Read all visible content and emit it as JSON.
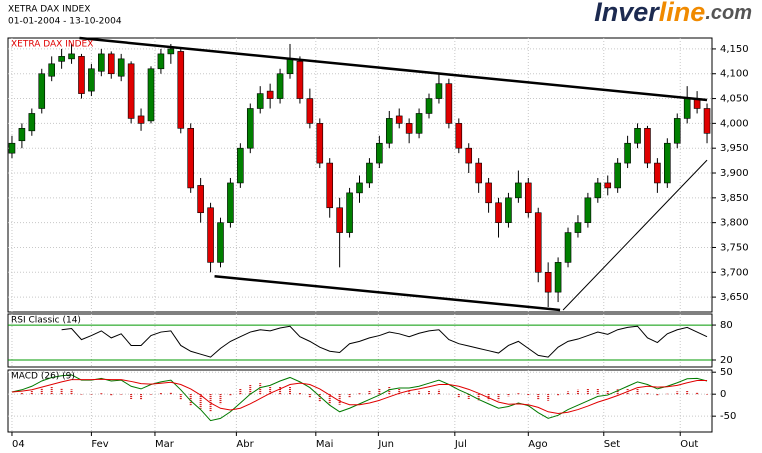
{
  "header": {
    "title": "XETRA DAX INDEX",
    "dates": "01-01-2004 - 13-10-2004",
    "logo": [
      "Inver",
      "line",
      ".com"
    ]
  },
  "chart_data": [
    {
      "type": "candlestick",
      "title": "XETRA DAX INDEX",
      "up_color": "#008000",
      "down_color": "#e00000",
      "grid": true,
      "grid_color": "#c8c8c8",
      "xlim": [
        -0.4,
        70.5
      ],
      "ylim": [
        3620,
        4172
      ],
      "yticks": [
        {
          "value": 3650,
          "label": "3,650"
        },
        {
          "value": 3700,
          "label": "3,700"
        },
        {
          "value": 3750,
          "label": "3,750"
        },
        {
          "value": 3800,
          "label": "3,800"
        },
        {
          "value": 3850,
          "label": "3,850"
        },
        {
          "value": 3900,
          "label": "3,900"
        },
        {
          "value": 3950,
          "label": "3,950"
        },
        {
          "value": 4000,
          "label": "4,000"
        },
        {
          "value": 4050,
          "label": "4,050"
        },
        {
          "value": 4100,
          "label": "4,100"
        },
        {
          "value": 4150,
          "label": "4,150"
        }
      ],
      "open": [
        3940,
        3965,
        3985,
        4030,
        4095,
        4125,
        4130,
        4135,
        4065,
        4105,
        4140,
        4095,
        4120,
        4015,
        4005,
        4110,
        4140,
        4145,
        3990,
        3875,
        3830,
        3720,
        3800,
        3880,
        3950,
        4030,
        4065,
        4050,
        4100,
        4125,
        4050,
        4000,
        3920,
        3830,
        3780,
        3860,
        3880,
        3920,
        3960,
        4015,
        4000,
        3980,
        4020,
        4050,
        4080,
        4000,
        3950,
        3920,
        3880,
        3840,
        3800,
        3850,
        3880,
        3820,
        3700,
        3660,
        3720,
        3780,
        3800,
        3850,
        3880,
        3870,
        3920,
        3960,
        3990,
        3920,
        3880,
        3960,
        4010,
        4050,
        4030
      ],
      "high": [
        3975,
        4000,
        4030,
        4110,
        4135,
        4150,
        4160,
        4140,
        4120,
        4150,
        4145,
        4140,
        4125,
        4030,
        4115,
        4150,
        4160,
        4150,
        4000,
        3890,
        3840,
        3810,
        3890,
        3960,
        4040,
        4075,
        4080,
        4110,
        4160,
        4135,
        4070,
        4010,
        3930,
        3850,
        3870,
        3895,
        3930,
        3975,
        4025,
        4030,
        4010,
        4030,
        4060,
        4100,
        4090,
        4010,
        3960,
        3930,
        3890,
        3850,
        3860,
        3905,
        3890,
        3830,
        3720,
        3730,
        3790,
        3815,
        3860,
        3890,
        3895,
        3930,
        3975,
        4000,
        3995,
        3930,
        3970,
        4020,
        4075,
        4065,
        4040
      ],
      "low": [
        3930,
        3950,
        3975,
        4020,
        4085,
        4110,
        4120,
        4050,
        4055,
        4095,
        4090,
        4085,
        4000,
        3985,
        4000,
        4100,
        4120,
        3980,
        3860,
        3800,
        3700,
        3710,
        3790,
        3870,
        3940,
        4020,
        4030,
        4040,
        4090,
        4040,
        3990,
        3910,
        3810,
        3710,
        3770,
        3840,
        3870,
        3910,
        3950,
        3990,
        3960,
        3970,
        4010,
        4040,
        3990,
        3940,
        3900,
        3860,
        3820,
        3770,
        3790,
        3840,
        3810,
        3680,
        3630,
        3640,
        3710,
        3770,
        3790,
        3840,
        3855,
        3860,
        3910,
        3950,
        3910,
        3860,
        3870,
        3950,
        4000,
        4020,
        3960
      ],
      "close": [
        3960,
        3990,
        4020,
        4100,
        4120,
        4135,
        4140,
        4060,
        4110,
        4140,
        4100,
        4130,
        4010,
        4000,
        4110,
        4140,
        4150,
        3990,
        3870,
        3820,
        3720,
        3800,
        3880,
        3950,
        4030,
        4060,
        4050,
        4100,
        4130,
        4050,
        4000,
        3920,
        3830,
        3780,
        3860,
        3880,
        3920,
        3960,
        4010,
        4000,
        3980,
        4020,
        4050,
        4080,
        4000,
        3950,
        3920,
        3880,
        3840,
        3800,
        3850,
        3880,
        3820,
        3700,
        3660,
        3720,
        3780,
        3800,
        3850,
        3880,
        3870,
        3920,
        3960,
        3990,
        3920,
        3880,
        3960,
        4010,
        4050,
        4030,
        3980
      ],
      "trendlines": [
        {
          "x": [
            6.8,
            70
          ],
          "y": [
            4172,
            4047
          ]
        },
        {
          "x": [
            20.4,
            55.2
          ],
          "y": [
            3692,
            3624
          ]
        },
        {
          "x": [
            55.5,
            70
          ],
          "y": [
            3624,
            3926
          ]
        }
      ]
    },
    {
      "type": "line",
      "title": "RSI Classic (14)",
      "ylim": [
        8,
        99
      ],
      "yticks": [
        20,
        80
      ],
      "grid": true,
      "grid_color": "#009900",
      "series": [
        {
          "color": "#000000",
          "values": [
            null,
            null,
            null,
            null,
            null,
            72,
            74,
            55,
            62,
            70,
            58,
            65,
            45,
            45,
            62,
            68,
            70,
            45,
            35,
            30,
            25,
            40,
            52,
            60,
            68,
            72,
            70,
            75,
            78,
            60,
            52,
            42,
            35,
            33,
            48,
            52,
            58,
            62,
            68,
            65,
            60,
            66,
            70,
            72,
            55,
            48,
            44,
            40,
            36,
            32,
            45,
            52,
            40,
            28,
            25,
            42,
            52,
            56,
            62,
            68,
            64,
            72,
            76,
            78,
            58,
            50,
            65,
            72,
            76,
            68,
            60
          ]
        }
      ]
    },
    {
      "type": "macd",
      "title": "MACD (26) (9)",
      "ylim": [
        -86,
        55
      ],
      "yticks": [
        -50,
        0,
        50
      ],
      "grid": true,
      "grid_color": "#c8c8c8",
      "histogram": {
        "color": "#d00000",
        "values": [
          0,
          3,
          8,
          14,
          16,
          14,
          11,
          -1,
          -1,
          2,
          -3,
          -1,
          -11,
          -12,
          -1,
          3,
          5,
          -12,
          -27,
          -33,
          -40,
          -23,
          -4,
          12,
          22,
          25,
          18,
          18,
          16,
          3,
          -7,
          -17,
          -23,
          -24,
          -8,
          2,
          8,
          12,
          16,
          12,
          6,
          6,
          8,
          10,
          0,
          -8,
          -11,
          -14,
          -14,
          -14,
          -5,
          2,
          -2,
          -12,
          -15,
          -4,
          6,
          10,
          12,
          13,
          9,
          11,
          12,
          13,
          4,
          -4,
          1,
          6,
          9,
          5,
          -1
        ]
      },
      "lines": [
        {
          "color": "#007a00",
          "values": [
            5,
            10,
            18,
            30,
            38,
            42,
            44,
            32,
            32,
            36,
            30,
            32,
            18,
            12,
            22,
            28,
            32,
            10,
            -15,
            -35,
            -60,
            -55,
            -40,
            -20,
            0,
            15,
            20,
            30,
            38,
            28,
            15,
            -5,
            -25,
            -40,
            -32,
            -22,
            -12,
            -2,
            10,
            14,
            14,
            18,
            25,
            32,
            22,
            10,
            0,
            -12,
            -22,
            -32,
            -28,
            -20,
            -26,
            -42,
            -55,
            -48,
            -35,
            -25,
            -15,
            -5,
            -2,
            8,
            18,
            28,
            22,
            12,
            18,
            26,
            35,
            36,
            30
          ]
        },
        {
          "color": "#e00000",
          "values": [
            5,
            7,
            10,
            16,
            22,
            28,
            33,
            33,
            33,
            34,
            33,
            33,
            29,
            24,
            23,
            25,
            27,
            22,
            12,
            -2,
            -20,
            -32,
            -36,
            -32,
            -22,
            -10,
            2,
            12,
            22,
            25,
            22,
            12,
            -2,
            -16,
            -24,
            -24,
            -20,
            -14,
            -6,
            2,
            8,
            12,
            17,
            22,
            22,
            18,
            11,
            2,
            -8,
            -18,
            -23,
            -22,
            -24,
            -30,
            -40,
            -44,
            -41,
            -35,
            -27,
            -18,
            -11,
            -3,
            6,
            15,
            18,
            16,
            17,
            20,
            26,
            31,
            31
          ]
        }
      ],
      "xticks": [
        {
          "value": 0,
          "label": "04"
        },
        {
          "value": 8,
          "label": "Fev"
        },
        {
          "value": 14.4,
          "label": "Mar"
        },
        {
          "value": 22.6,
          "label": "Abr"
        },
        {
          "value": 30.6,
          "label": "Mai"
        },
        {
          "value": 36.9,
          "label": "Jun"
        },
        {
          "value": 44.6,
          "label": "Jul"
        },
        {
          "value": 52,
          "label": "Ago"
        },
        {
          "value": 59.6,
          "label": "Set"
        },
        {
          "value": 67.3,
          "label": "Out"
        }
      ]
    }
  ]
}
